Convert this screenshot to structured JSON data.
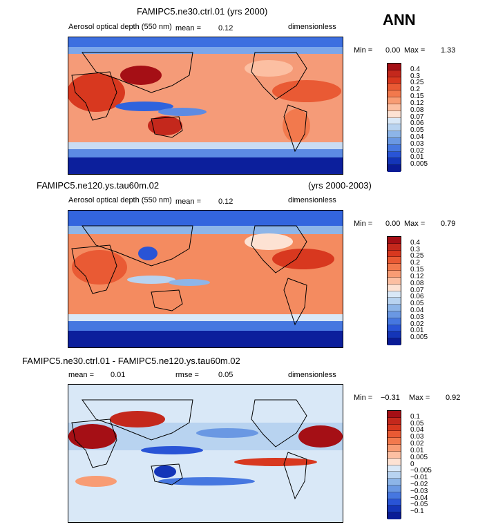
{
  "season_label": "ANN",
  "panels": [
    {
      "title_left": "FAMIPC5.ne30.ctrl.01 (yrs 2000)",
      "title_right": "",
      "field_label": "Aerosol optical depth (550 nm)",
      "mean_label": "mean =",
      "mean_value": "0.12",
      "rmse_label": "",
      "rmse_value": "",
      "units": "dimensionless",
      "min_label": "Min =",
      "min_value": "0.00",
      "max_label": "Max =",
      "max_value": "1.33",
      "colorbar_labels": [
        "0.4",
        "0.3",
        "0.25",
        "0.2",
        "0.15",
        "0.12",
        "0.08",
        "0.07",
        "0.06",
        "0.05",
        "0.04",
        "0.03",
        "0.02",
        "0.01",
        "0.005"
      ],
      "colorbar_colors": [
        "#a50f15",
        "#c4281c",
        "#d8381f",
        "#e95a34",
        "#f2794d",
        "#f89c74",
        "#fcbfa2",
        "#fde2d3",
        "#d9e8f7",
        "#b8d3f0",
        "#8db5e8",
        "#6a98e3",
        "#4677e0",
        "#2954d6",
        "#1435b8",
        "#0a1b96"
      ]
    },
    {
      "title_left": "FAMIPC5.ne120.ys.tau60m.02",
      "title_right": "(yrs 2000-2003)",
      "field_label": "Aerosol optical depth (550 nm)",
      "mean_label": "mean =",
      "mean_value": "0.12",
      "rmse_label": "",
      "rmse_value": "",
      "units": "dimensionless",
      "min_label": "Min =",
      "min_value": "0.00",
      "max_label": "Max =",
      "max_value": "0.79",
      "colorbar_labels": [
        "0.4",
        "0.3",
        "0.25",
        "0.2",
        "0.15",
        "0.12",
        "0.08",
        "0.07",
        "0.06",
        "0.05",
        "0.04",
        "0.03",
        "0.02",
        "0.01",
        "0.005"
      ],
      "colorbar_colors": [
        "#a50f15",
        "#c4281c",
        "#d8381f",
        "#e95a34",
        "#f2794d",
        "#f89c74",
        "#fcbfa2",
        "#fde2d3",
        "#d9e8f7",
        "#b8d3f0",
        "#8db5e8",
        "#6a98e3",
        "#4677e0",
        "#2954d6",
        "#1435b8",
        "#0a1b96"
      ]
    },
    {
      "title_left": "FAMIPC5.ne30.ctrl.01 - FAMIPC5.ne120.ys.tau60m.02",
      "title_right": "",
      "field_label": "",
      "mean_label": "mean =",
      "mean_value": "0.01",
      "rmse_label": "rmse =",
      "rmse_value": "0.05",
      "units": "dimensionless",
      "min_label": "Min =",
      "min_value": "−0.31",
      "max_label": "Max =",
      "max_value": "0.92",
      "colorbar_labels": [
        "0.1",
        "0.05",
        "0.04",
        "0.03",
        "0.02",
        "0.01",
        "0.005",
        "0",
        "−0.005",
        "−0.01",
        "−0.02",
        "−0.03",
        "−0.04",
        "−0.05",
        "−0.1"
      ],
      "colorbar_colors": [
        "#a50f15",
        "#c4281c",
        "#d8381f",
        "#e95a34",
        "#f2794d",
        "#f89c74",
        "#fcbfa2",
        "#fde2d3",
        "#d9e8f7",
        "#b8d3f0",
        "#8db5e8",
        "#6a98e3",
        "#4677e0",
        "#2954d6",
        "#1435b8",
        "#0a1b96"
      ]
    }
  ],
  "chart_data": [
    {
      "type": "heatmap",
      "title": "FAMIPC5.ne30.ctrl.01 (yrs 2000)",
      "variable": "Aerosol optical depth (550 nm)",
      "units": "dimensionless",
      "mean": 0.12,
      "min": 0.0,
      "max": 1.33,
      "contour_levels": [
        0.005,
        0.01,
        0.02,
        0.03,
        0.04,
        0.05,
        0.06,
        0.07,
        0.08,
        0.12,
        0.15,
        0.2,
        0.25,
        0.3,
        0.4
      ]
    },
    {
      "type": "heatmap",
      "title": "FAMIPC5.ne120.ys.tau60m.02 (yrs 2000-2003)",
      "variable": "Aerosol optical depth (550 nm)",
      "units": "dimensionless",
      "mean": 0.12,
      "min": 0.0,
      "max": 0.79,
      "contour_levels": [
        0.005,
        0.01,
        0.02,
        0.03,
        0.04,
        0.05,
        0.06,
        0.07,
        0.08,
        0.12,
        0.15,
        0.2,
        0.25,
        0.3,
        0.4
      ]
    },
    {
      "type": "heatmap",
      "title": "FAMIPC5.ne30.ctrl.01 - FAMIPC5.ne120.ys.tau60m.02",
      "units": "dimensionless",
      "mean": 0.01,
      "rmse": 0.05,
      "min": -0.31,
      "max": 0.92,
      "contour_levels": [
        -0.1,
        -0.05,
        -0.04,
        -0.03,
        -0.02,
        -0.01,
        -0.005,
        0,
        0.005,
        0.01,
        0.02,
        0.03,
        0.04,
        0.05,
        0.1
      ]
    }
  ]
}
